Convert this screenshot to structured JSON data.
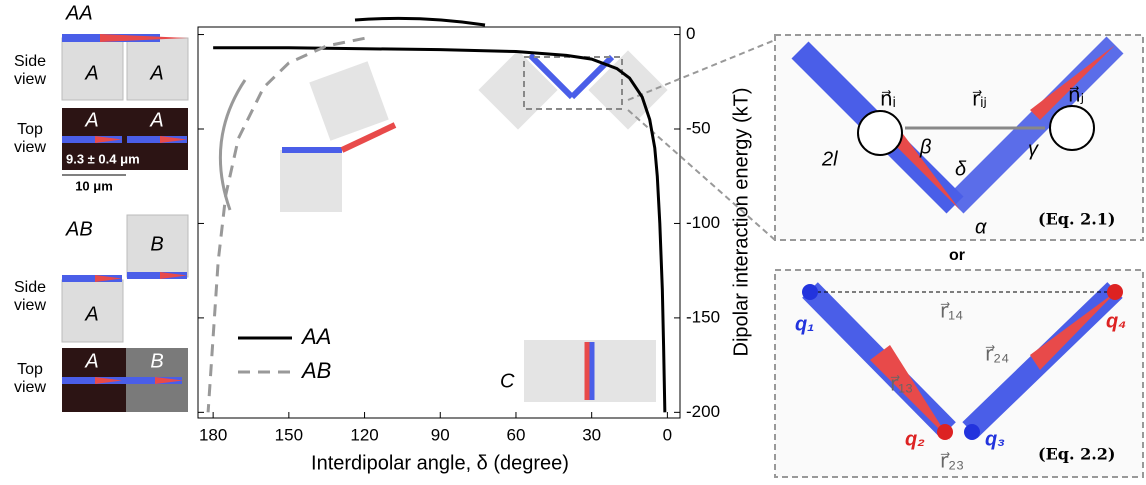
{
  "chart_data": {
    "type": "line",
    "x_label": "Interdipolar angle, δ (degree)",
    "y_label": "Dipolar interaction energy (kT)",
    "xlim": [
      186,
      -5
    ],
    "ylim": [
      -203,
      4
    ],
    "xticks": [
      180,
      150,
      120,
      90,
      60,
      30,
      0
    ],
    "yticks": [
      0,
      -50,
      -100,
      -150,
      -200
    ],
    "legend": "lower left",
    "annotations": [
      "C"
    ],
    "series": [
      {
        "name": "AA",
        "color": "#000000",
        "dash": false,
        "x": [
          180,
          150,
          120,
          90,
          60,
          40,
          30,
          20,
          15,
          10,
          7,
          5,
          4,
          3,
          2,
          1.5,
          1
        ],
        "values": [
          -7,
          -7,
          -7.5,
          -8,
          -9,
          -11,
          -13,
          -18,
          -23,
          -33,
          -45,
          -60,
          -75,
          -100,
          -135,
          -165,
          -200
        ]
      },
      {
        "name": "AB",
        "color": "#999999",
        "dash": true,
        "x": [
          120,
          135,
          150,
          160,
          170,
          175,
          178,
          180,
          182
        ],
        "values": [
          -2,
          -6,
          -15,
          -28,
          -55,
          -85,
          -120,
          -160,
          -200
        ]
      }
    ]
  },
  "left_panel": {
    "aa_title": "AA",
    "aa_side_label": [
      "Side",
      "view"
    ],
    "aa_side_tiles": [
      "A",
      "A"
    ],
    "aa_top_label": [
      "Top",
      "view"
    ],
    "aa_top_tiles": [
      "A",
      "A"
    ],
    "rod_length": "9.3 ± 0.4 μm",
    "tile_size": "10 μm",
    "ab_title": "AB",
    "ab_side_tiles": [
      "B",
      "A"
    ],
    "ab_side_label": [
      "Side",
      "view"
    ],
    "ab_top_label": [
      "Top",
      "view"
    ],
    "ab_top_tiles": [
      "A",
      "B"
    ]
  },
  "eq_panel_1": {
    "n_i": "n⃗ᵢ",
    "r_ij": "r⃗ᵢⱼ",
    "n_j": "n⃗ⱼ",
    "beta": "β",
    "gamma": "γ",
    "delta": "δ",
    "length": "2l",
    "alpha": "α",
    "equation": "(Eq. 2.1)"
  },
  "separator": "or",
  "eq_panel_2": {
    "q1": "q₁",
    "q2": "q₂",
    "q3": "q₃",
    "q4": "q₄",
    "r14": "r⃗₁₄",
    "r13": "r⃗₁₃",
    "r24": "r⃗₂₄",
    "r23": "r⃗₂₃",
    "equation": "(Eq. 2.2)"
  }
}
